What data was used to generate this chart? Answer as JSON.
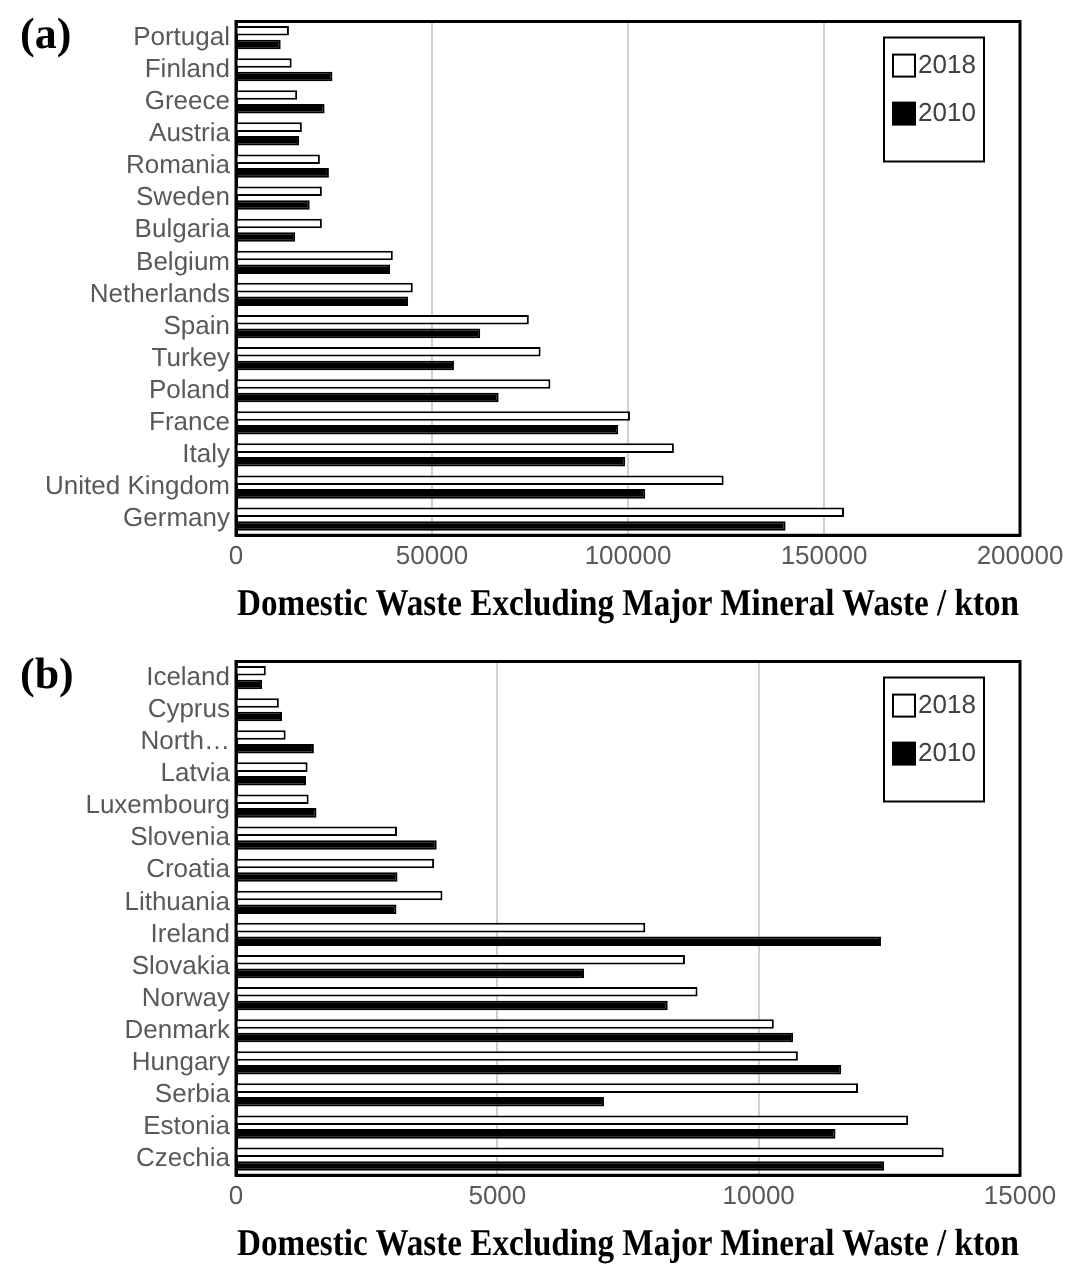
{
  "chart_data": [
    {
      "type": "bar",
      "orientation": "horizontal",
      "annotations": [
        "(a)"
      ],
      "xlabel": "Domestic Waste Excluding Major Mineral Waste / kton",
      "categories": [
        "Portugal",
        "Finland",
        "Greece",
        "Austria",
        "Romania",
        "Sweden",
        "Bulgaria",
        "Belgium",
        "Netherlands",
        "Spain",
        "Turkey",
        "Poland",
        "France",
        "Italy",
        "United Kingdom",
        "Germany"
      ],
      "series": [
        {
          "name": "2018",
          "color": "#ffffff",
          "values": [
            13500,
            14200,
            15600,
            16800,
            21400,
            21900,
            21900,
            40000,
            45100,
            74700,
            77700,
            80200,
            100500,
            111700,
            124400,
            155100
          ]
        },
        {
          "name": "2010",
          "color": "#000000",
          "values": [
            11400,
            24600,
            22600,
            16100,
            23700,
            18800,
            15100,
            39300,
            43900,
            62300,
            55600,
            67000,
            97500,
            99300,
            104400,
            140200
          ]
        }
      ],
      "xlim": [
        0,
        200000
      ],
      "xticks": [
        0,
        50000,
        100000,
        150000,
        200000
      ],
      "grid": "x",
      "legend": "top right"
    },
    {
      "type": "bar",
      "orientation": "horizontal",
      "annotations": [
        "(b)"
      ],
      "xlabel": "Domestic Waste Excluding Major Mineral Waste / kton",
      "categories": [
        "Iceland",
        "Cyprus",
        "North…",
        "Latvia",
        "Luxembourg",
        "Slovenia",
        "Croatia",
        "Lithuania",
        "Ireland",
        "Slovakia",
        "Norway",
        "Denmark",
        "Hungary",
        "Serbia",
        "Estonia",
        "Czechia"
      ],
      "series": [
        {
          "name": "2018",
          "color": "#ffffff",
          "values": [
            570,
            820,
            950,
            1370,
            1390,
            3080,
            3790,
            3950,
            7830,
            8590,
            8830,
            10290,
            10750,
            11900,
            12860,
            13540
          ]
        },
        {
          "name": "2010",
          "color": "#000000",
          "values": [
            500,
            880,
            1490,
            1340,
            1540,
            3840,
            3090,
            3070,
            12340,
            6660,
            8260,
            10660,
            11580,
            7040,
            11470,
            12400
          ]
        }
      ],
      "xlim": [
        0,
        15000
      ],
      "xticks": [
        0,
        5000,
        10000,
        15000
      ],
      "grid": "x",
      "legend": "top right"
    }
  ]
}
